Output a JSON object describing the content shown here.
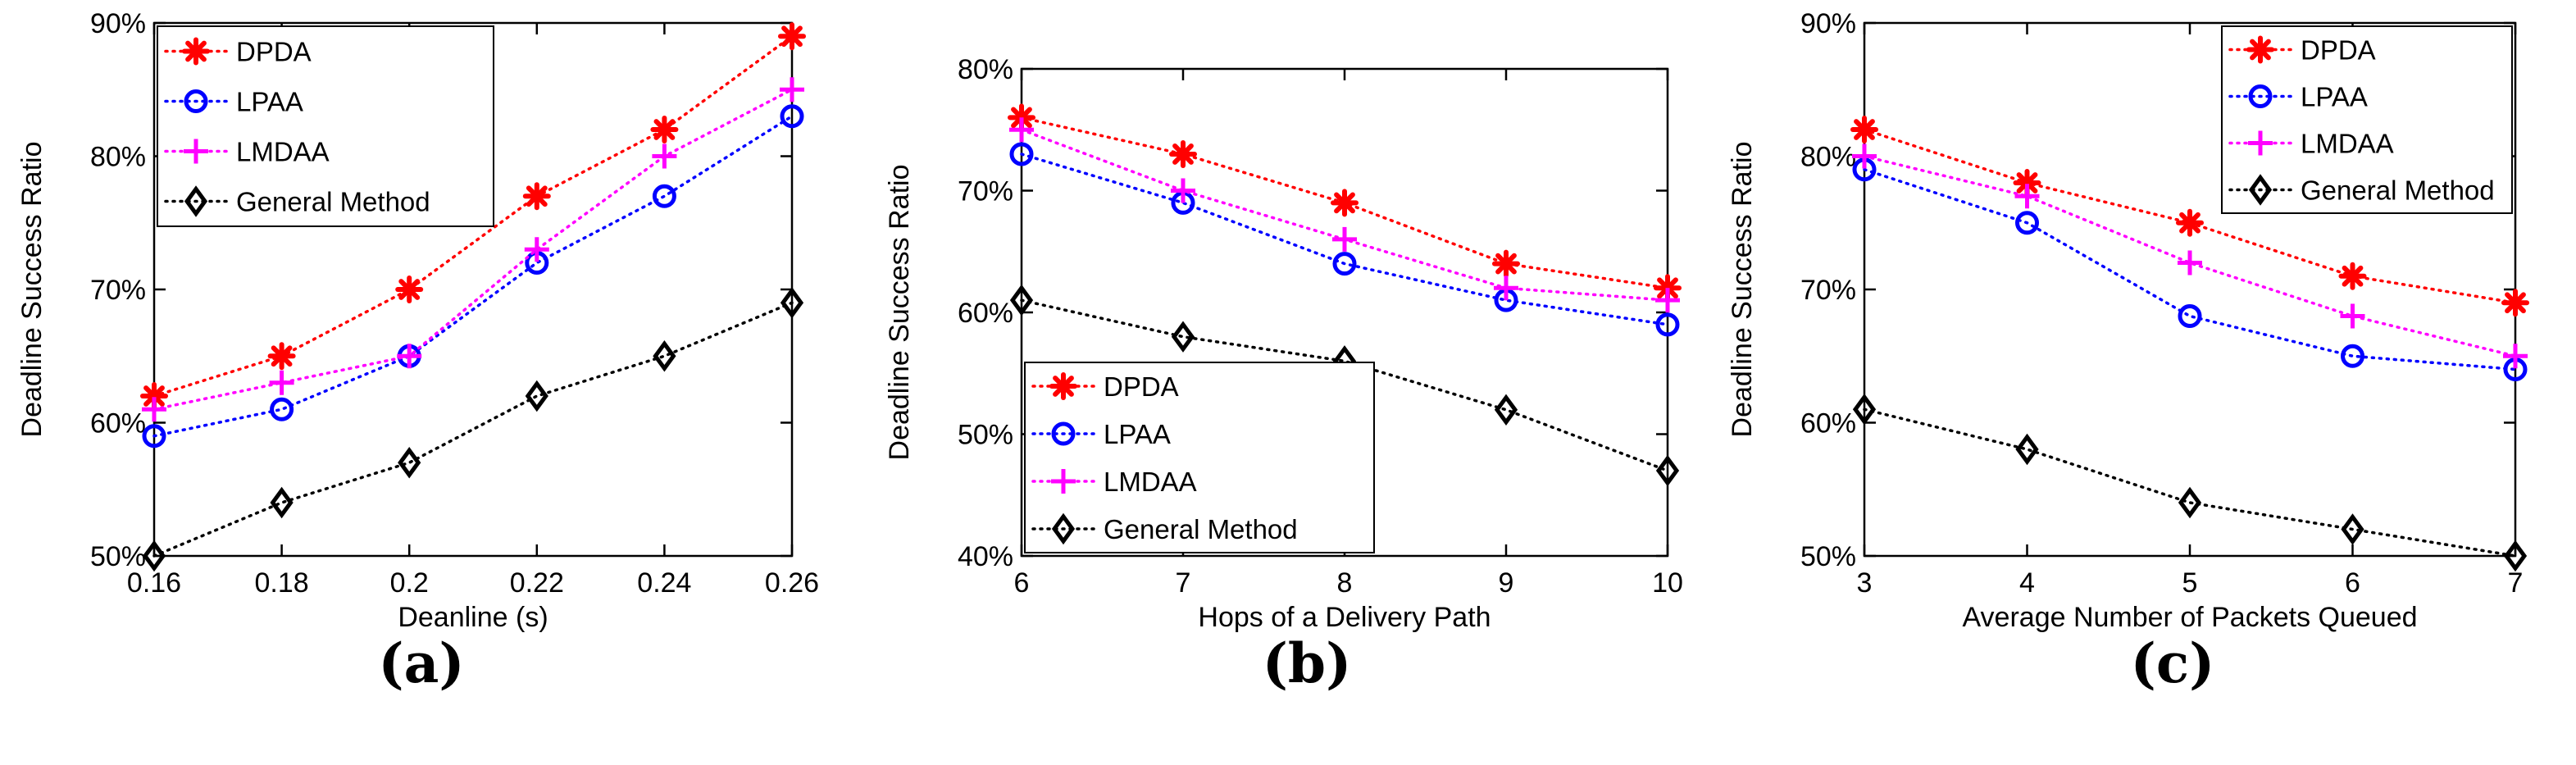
{
  "figure": {
    "panels": [
      {
        "caption": "(a)"
      },
      {
        "caption": "(b)"
      },
      {
        "caption": "(c)"
      }
    ]
  },
  "series_styles": [
    {
      "name": "DPDA",
      "color": "#ff0000",
      "marker": "asterisk"
    },
    {
      "name": "LPAA",
      "color": "#0000ff",
      "marker": "circle"
    },
    {
      "name": "LMDAA",
      "color": "#ff00ff",
      "marker": "plus"
    },
    {
      "name": "General Method",
      "color": "#000000",
      "marker": "diamond"
    }
  ],
  "chart_data": [
    {
      "type": "line",
      "caption": "(a)",
      "xlabel": "Deanline (s)",
      "ylabel": "Deadline Success Ratio",
      "x": [
        0.16,
        0.18,
        0.2,
        0.22,
        0.24,
        0.26
      ],
      "xticks": [
        "0.16",
        "0.18",
        "0.2",
        "0.22",
        "0.24",
        "0.26"
      ],
      "xlim": [
        0.16,
        0.26
      ],
      "ylim": [
        50,
        90
      ],
      "yticks": [
        "50%",
        "60%",
        "70%",
        "80%",
        "90%"
      ],
      "ytick_values": [
        50,
        60,
        70,
        80,
        90
      ],
      "legend_position": "top-left",
      "series": [
        {
          "name": "DPDA",
          "values": [
            62,
            65,
            70,
            77,
            82,
            89
          ]
        },
        {
          "name": "LPAA",
          "values": [
            59,
            61,
            65,
            72,
            77,
            83
          ]
        },
        {
          "name": "LMDAA",
          "values": [
            61,
            63,
            65,
            73,
            80,
            85
          ]
        },
        {
          "name": "General Method",
          "values": [
            50,
            54,
            57,
            62,
            65,
            69
          ]
        }
      ]
    },
    {
      "type": "line",
      "caption": "(b)",
      "xlabel": "Hops of a Delivery Path",
      "ylabel": "Deadline Success Ratio",
      "x": [
        6,
        7,
        8,
        9,
        10
      ],
      "xticks": [
        "6",
        "7",
        "8",
        "9",
        "10"
      ],
      "xlim": [
        6,
        10
      ],
      "ylim": [
        40,
        80
      ],
      "yticks": [
        "40%",
        "50%",
        "60%",
        "70%",
        "80%"
      ],
      "ytick_values": [
        40,
        50,
        60,
        70,
        80
      ],
      "legend_position": "bottom-left",
      "series": [
        {
          "name": "DPDA",
          "values": [
            76,
            73,
            69,
            64,
            62
          ]
        },
        {
          "name": "LPAA",
          "values": [
            73,
            69,
            64,
            61,
            59
          ]
        },
        {
          "name": "LMDAA",
          "values": [
            75,
            70,
            66,
            62,
            61
          ]
        },
        {
          "name": "General Method",
          "values": [
            61,
            58,
            56,
            52,
            47
          ]
        }
      ]
    },
    {
      "type": "line",
      "caption": "(c)",
      "xlabel": "Average Number of Packets Queued",
      "ylabel": "Deadline Success Ratio",
      "x": [
        3,
        4,
        5,
        6,
        7
      ],
      "xticks": [
        "3",
        "4",
        "5",
        "6",
        "7"
      ],
      "xlim": [
        3,
        7
      ],
      "ylim": [
        50,
        90
      ],
      "yticks": [
        "50%",
        "60%",
        "70%",
        "80%",
        "90%"
      ],
      "ytick_values": [
        50,
        60,
        70,
        80,
        90
      ],
      "legend_position": "top-right",
      "series": [
        {
          "name": "DPDA",
          "values": [
            82,
            78,
            75,
            71,
            69
          ]
        },
        {
          "name": "LPAA",
          "values": [
            79,
            75,
            68,
            65,
            64
          ]
        },
        {
          "name": "LMDAA",
          "values": [
            80,
            77,
            72,
            68,
            65
          ]
        },
        {
          "name": "General Method",
          "values": [
            61,
            58,
            54,
            52,
            50
          ]
        }
      ]
    }
  ]
}
